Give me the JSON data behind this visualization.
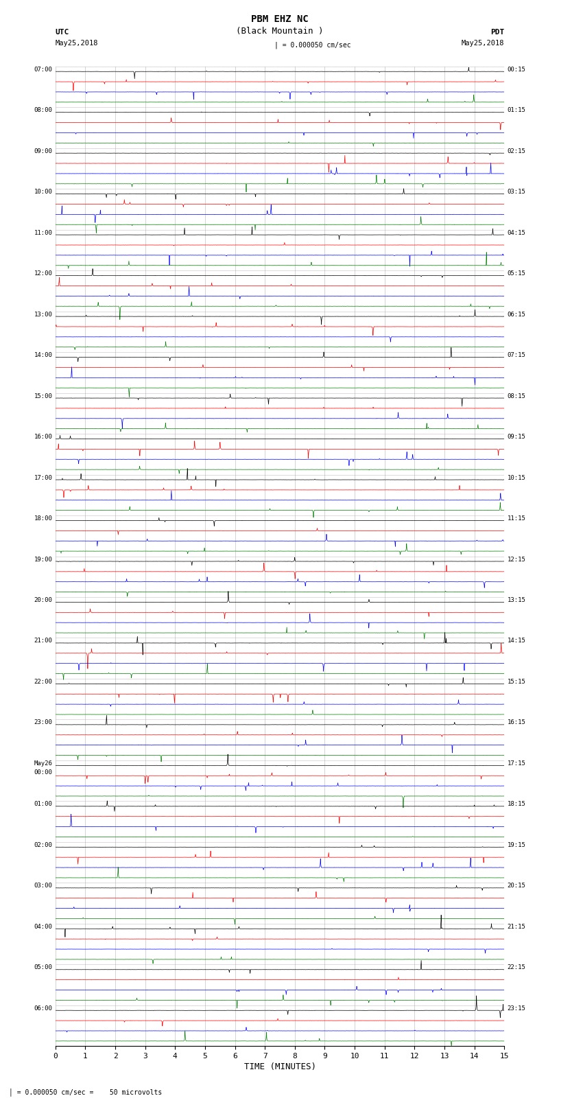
{
  "title_line1": "PBM EHZ NC",
  "title_line2": "(Black Mountain )",
  "scale_text": "= 0.000050 cm/sec",
  "left_header_line1": "UTC",
  "left_header_line2": "May25,2018",
  "right_header_line1": "PDT",
  "right_header_line2": "May25,2018",
  "xlabel": "TIME (MINUTES)",
  "bottom_note": "= 0.000050 cm/sec =    50 microvolts",
  "colors": [
    "black",
    "red",
    "blue",
    "green"
  ],
  "n_rows": 24,
  "traces_per_row": 4,
  "x_min": 0,
  "x_max": 15,
  "utc_labels": [
    "07:00",
    "08:00",
    "09:00",
    "10:00",
    "11:00",
    "12:00",
    "13:00",
    "14:00",
    "15:00",
    "16:00",
    "17:00",
    "18:00",
    "19:00",
    "20:00",
    "21:00",
    "22:00",
    "23:00",
    "May26\n00:00",
    "01:00",
    "02:00",
    "03:00",
    "04:00",
    "05:00",
    "06:00"
  ],
  "pdt_labels": [
    "00:15",
    "01:15",
    "02:15",
    "03:15",
    "04:15",
    "05:15",
    "06:15",
    "07:15",
    "08:15",
    "09:15",
    "10:15",
    "11:15",
    "12:15",
    "13:15",
    "14:15",
    "15:15",
    "16:15",
    "17:15",
    "18:15",
    "19:15",
    "20:15",
    "21:15",
    "22:15",
    "23:15"
  ],
  "fig_width": 8.5,
  "fig_height": 16.13,
  "bg_color": "#ffffff",
  "grid_color": "#aaaaaa",
  "amplitude_base": 0.06,
  "spike_prob": 0.0015,
  "spike_amplitude": 8.0,
  "n_points": 3000
}
